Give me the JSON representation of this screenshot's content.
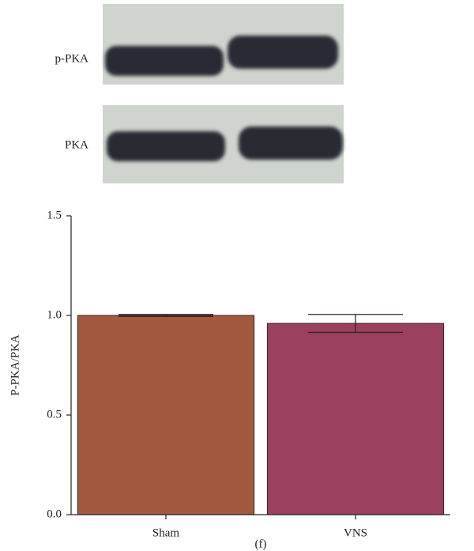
{
  "chart_data": {
    "type": "bar",
    "blot_labels": [
      "p-PKA",
      "PKA"
    ],
    "ylabel": "P-PKA/PKA",
    "categories": [
      "Sham",
      "VNS"
    ],
    "values": [
      1.0,
      0.96
    ],
    "errors": [
      0.005,
      0.045
    ],
    "colors": [
      "#a15a40",
      "#9b405f"
    ],
    "ylim": [
      0,
      1.5
    ],
    "yticks": [
      {
        "value": 0,
        "label": "0.0"
      },
      0.5,
      {
        "value": 1,
        "label": "1.0"
      },
      1.5
    ],
    "caption": "(f)"
  }
}
